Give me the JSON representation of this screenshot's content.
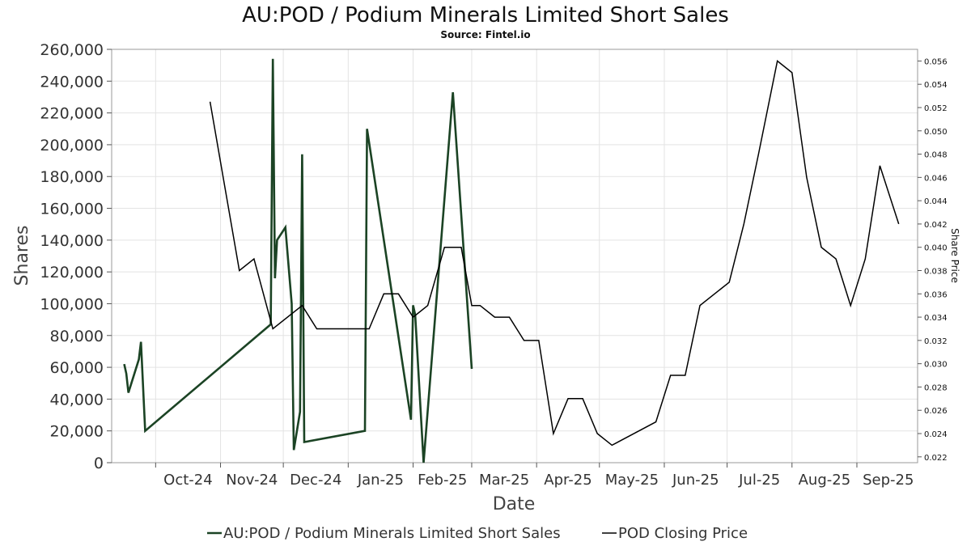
{
  "chart_data": {
    "type": "line",
    "title": "AU:POD / Podium Minerals Limited Short Sales",
    "subtitle": "Source: Fintel.io",
    "xlabel": "Date",
    "ylabel": "Shares",
    "ylabel_right": "Share Price",
    "x_ticks": [
      "Oct-24",
      "Nov-24",
      "Dec-24",
      "Jan-25",
      "Feb-25",
      "Mar-25",
      "Apr-25",
      "May-25",
      "Jun-25",
      "Jul-25",
      "Aug-25",
      "Sep-25"
    ],
    "x_range": [
      "2024-09-10",
      "2025-09-30"
    ],
    "ylim_left": [
      0,
      260000
    ],
    "y_ticks_left": [
      0,
      20000,
      40000,
      60000,
      80000,
      100000,
      120000,
      140000,
      160000,
      180000,
      200000,
      220000,
      240000,
      260000
    ],
    "y_tick_labels_left": [
      "0",
      "20,000",
      "40,000",
      "60,000",
      "80,000",
      "100,000",
      "120,000",
      "140,000",
      "160,000",
      "180,000",
      "200,000",
      "220,000",
      "240,000",
      "260,000"
    ],
    "ylim_right": [
      0.0215,
      0.057
    ],
    "y_ticks_right": [
      0.022,
      0.024,
      0.026,
      0.028,
      0.03,
      0.032,
      0.034,
      0.036,
      0.038,
      0.04,
      0.042,
      0.044,
      0.046,
      0.048,
      0.05,
      0.052,
      0.054,
      0.056
    ],
    "y_tick_labels_right": [
      "0.022",
      "0.024",
      "0.026",
      "0.028",
      "0.030",
      "0.032",
      "0.034",
      "0.036",
      "0.038",
      "0.040",
      "0.042",
      "0.044",
      "0.046",
      "0.048",
      "0.050",
      "0.052",
      "0.054",
      "0.056"
    ],
    "grid": true,
    "legend_position": "bottom",
    "series": [
      {
        "name": "AU:POD / Podium Minerals Limited Short Sales",
        "axis": "left",
        "color": "#1b4324",
        "points": [
          [
            "2024-09-16",
            62000
          ],
          [
            "2024-09-17",
            56000
          ],
          [
            "2024-09-18",
            44000
          ],
          [
            "2024-09-23",
            65000
          ],
          [
            "2024-09-24",
            76000
          ],
          [
            "2024-09-26",
            20000
          ],
          [
            "2024-11-25",
            87000
          ],
          [
            "2024-11-26",
            254000
          ],
          [
            "2024-11-27",
            116000
          ],
          [
            "2024-11-28",
            140000
          ],
          [
            "2024-12-02",
            148000
          ],
          [
            "2024-12-05",
            100000
          ],
          [
            "2024-12-06",
            8000
          ],
          [
            "2024-12-09",
            32000
          ],
          [
            "2024-12-10",
            194000
          ],
          [
            "2024-12-11",
            13000
          ],
          [
            "2025-01-09",
            20000
          ],
          [
            "2025-01-10",
            210000
          ],
          [
            "2025-01-31",
            27000
          ],
          [
            "2025-02-01",
            99000
          ],
          [
            "2025-02-02",
            93000
          ],
          [
            "2025-02-06",
            0
          ],
          [
            "2025-02-20",
            233000
          ],
          [
            "2025-03-01",
            59000
          ]
        ]
      },
      {
        "name": "POD Closing Price",
        "axis": "right",
        "color": "#000000",
        "points": [
          [
            "2024-10-27",
            0.0525
          ],
          [
            "2024-11-10",
            0.038
          ],
          [
            "2024-11-17",
            0.039
          ],
          [
            "2024-11-26",
            0.033
          ],
          [
            "2024-12-10",
            0.035
          ],
          [
            "2024-12-17",
            0.033
          ],
          [
            "2025-01-11",
            0.033
          ],
          [
            "2025-01-18",
            0.036
          ],
          [
            "2025-01-25",
            0.036
          ],
          [
            "2025-02-01",
            0.034
          ],
          [
            "2025-02-08",
            0.035
          ],
          [
            "2025-02-16",
            0.04
          ],
          [
            "2025-02-24",
            0.04
          ],
          [
            "2025-03-01",
            0.035
          ],
          [
            "2025-03-05",
            0.035
          ],
          [
            "2025-03-12",
            0.034
          ],
          [
            "2025-03-19",
            0.034
          ],
          [
            "2025-03-26",
            0.032
          ],
          [
            "2025-04-02",
            0.032
          ],
          [
            "2025-04-09",
            0.024
          ],
          [
            "2025-04-16",
            0.027
          ],
          [
            "2025-04-23",
            0.027
          ],
          [
            "2025-04-30",
            0.024
          ],
          [
            "2025-05-07",
            0.023
          ],
          [
            "2025-05-28",
            0.025
          ],
          [
            "2025-06-04",
            0.029
          ],
          [
            "2025-06-11",
            0.029
          ],
          [
            "2025-06-18",
            0.035
          ],
          [
            "2025-07-02",
            0.037
          ],
          [
            "2025-07-09",
            0.042
          ],
          [
            "2025-07-16",
            0.048
          ],
          [
            "2025-07-25",
            0.056
          ],
          [
            "2025-08-01",
            0.055
          ],
          [
            "2025-08-08",
            0.046
          ],
          [
            "2025-08-15",
            0.04
          ],
          [
            "2025-08-22",
            0.039
          ],
          [
            "2025-08-29",
            0.035
          ],
          [
            "2025-09-05",
            0.039
          ],
          [
            "2025-09-12",
            0.047
          ],
          [
            "2025-09-21",
            0.042
          ]
        ]
      }
    ]
  }
}
